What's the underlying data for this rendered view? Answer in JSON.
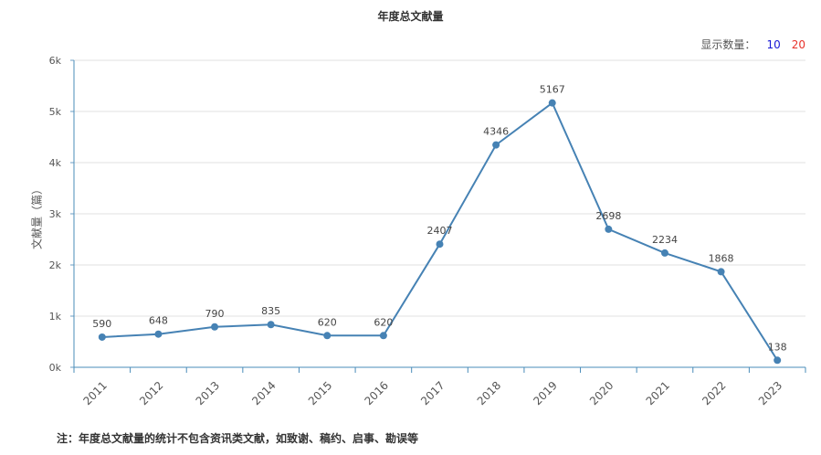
{
  "chart_data": {
    "type": "line",
    "title": "年度总文献量",
    "ylabel": "文献量（篇）",
    "xlabel": "",
    "categories": [
      "2011",
      "2012",
      "2013",
      "2014",
      "2015",
      "2016",
      "2017",
      "2018",
      "2019",
      "2020",
      "2021",
      "2022",
      "2023"
    ],
    "values": [
      590,
      648,
      790,
      835,
      620,
      620,
      2407,
      4346,
      5167,
      2698,
      2234,
      1868,
      138
    ],
    "ylim": [
      0,
      6000
    ],
    "yticks": [
      0,
      1000,
      2000,
      3000,
      4000,
      5000,
      6000
    ],
    "ytick_labels": [
      "0k",
      "1k",
      "2k",
      "3k",
      "4k",
      "5k",
      "6k"
    ],
    "line_color": "#4682b4",
    "grid": true,
    "data_labels": true
  },
  "controls": {
    "count_label": "显示数量：",
    "option_10": "10",
    "option_20": "20"
  },
  "note": "注：年度总文献量的统计不包含资讯类文献，如致谢、稿约、启事、勘误等"
}
